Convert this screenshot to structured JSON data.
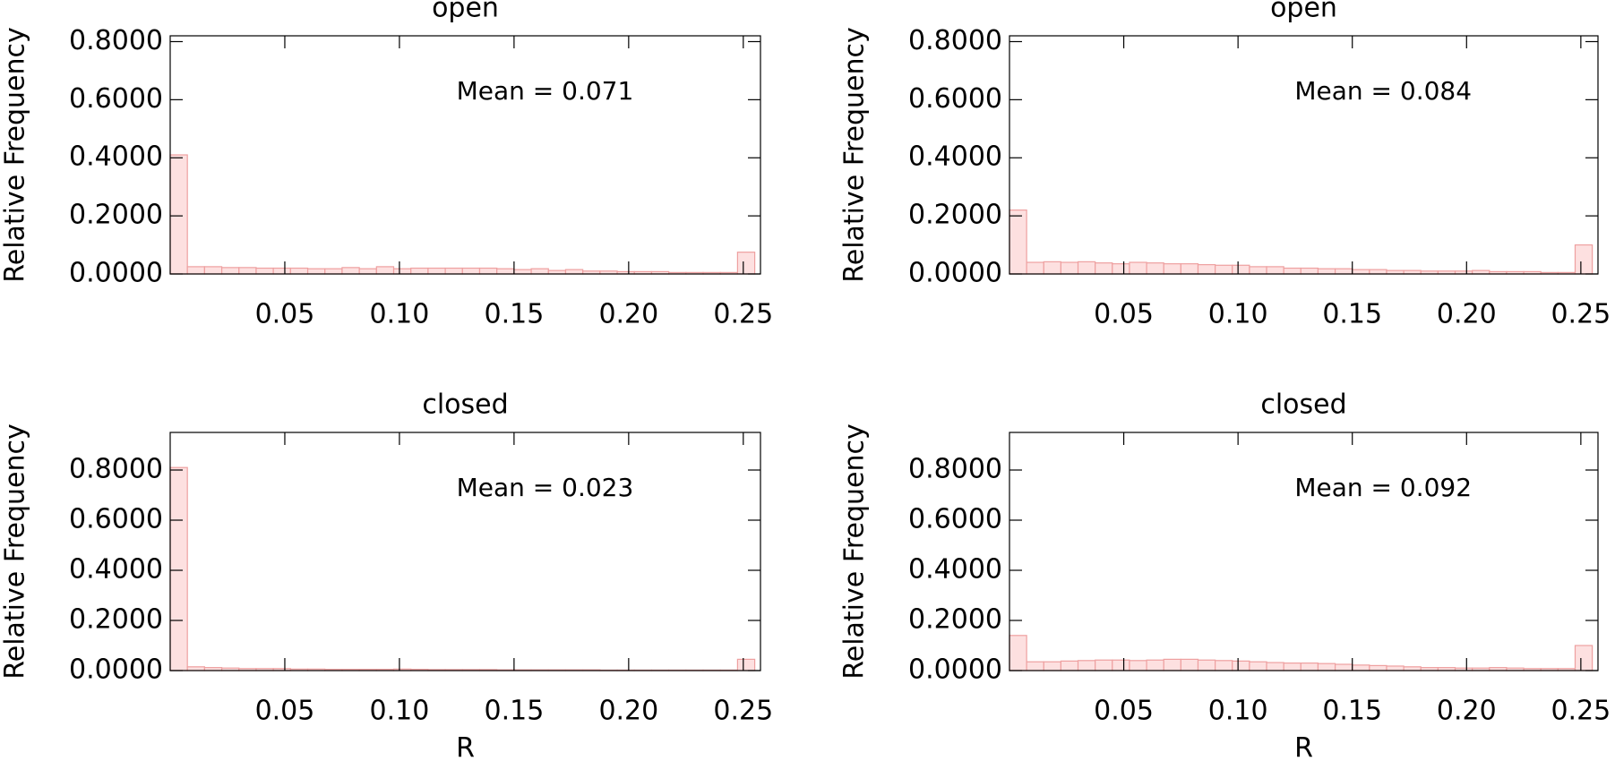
{
  "chart_data": [
    {
      "type": "histogram",
      "title": "open",
      "ylabel": "Relative Frequency",
      "annotation": "Mean = 0.071",
      "color": "#fde0e0",
      "edgecolor": "#eea0a0",
      "annotation_color": "#0000ee",
      "bins": [
        0,
        0.0075,
        0.015,
        0.0225,
        0.03,
        0.0375,
        0.045,
        0.0525,
        0.06,
        0.0675,
        0.075,
        0.0825,
        0.09,
        0.0975,
        0.105,
        0.1125,
        0.12,
        0.1275,
        0.135,
        0.1425,
        0.15,
        0.1575,
        0.165,
        0.1725,
        0.18,
        0.1875,
        0.195,
        0.2025,
        0.21,
        0.2175,
        0.225,
        0.2325,
        0.24,
        0.2475,
        0.255
      ],
      "values": [
        0.41,
        0.025,
        0.025,
        0.022,
        0.022,
        0.02,
        0.02,
        0.02,
        0.018,
        0.018,
        0.022,
        0.018,
        0.025,
        0.018,
        0.02,
        0.02,
        0.02,
        0.02,
        0.02,
        0.018,
        0.015,
        0.018,
        0.012,
        0.015,
        0.01,
        0.01,
        0.008,
        0.008,
        0.008,
        0.005,
        0.005,
        0.005,
        0.005,
        0.075
      ],
      "xlim": [
        0,
        0.2575
      ],
      "ylim": [
        0,
        0.82
      ],
      "xticks": [
        0.05,
        {
          "value": 0.1,
          "label": "0.10"
        },
        0.15,
        {
          "value": 0.2,
          "label": "0.20"
        },
        0.25
      ],
      "yticks": [
        {
          "value": 0,
          "label": "0.0000"
        },
        {
          "value": 0.2,
          "label": "0.2000"
        },
        {
          "value": 0.4,
          "label": "0.4000"
        },
        {
          "value": 0.6,
          "label": "0.6000"
        },
        {
          "value": 0.8,
          "label": "0.8000"
        }
      ]
    },
    {
      "type": "histogram",
      "title": "open",
      "ylabel": "Relative Frequency",
      "annotation": "Mean = 0.084",
      "color": "#fde0e0",
      "edgecolor": "#eea0a0",
      "annotation_color": "#0000ee",
      "bins": [
        0,
        0.0075,
        0.015,
        0.0225,
        0.03,
        0.0375,
        0.045,
        0.0525,
        0.06,
        0.0675,
        0.075,
        0.0825,
        0.09,
        0.0975,
        0.105,
        0.1125,
        0.12,
        0.1275,
        0.135,
        0.1425,
        0.15,
        0.1575,
        0.165,
        0.1725,
        0.18,
        0.1875,
        0.195,
        0.2025,
        0.21,
        0.2175,
        0.225,
        0.2325,
        0.24,
        0.2475,
        0.255
      ],
      "values": [
        0.22,
        0.04,
        0.042,
        0.04,
        0.042,
        0.038,
        0.035,
        0.04,
        0.038,
        0.035,
        0.035,
        0.032,
        0.03,
        0.03,
        0.025,
        0.025,
        0.02,
        0.02,
        0.018,
        0.018,
        0.015,
        0.015,
        0.012,
        0.012,
        0.01,
        0.01,
        0.01,
        0.012,
        0.008,
        0.008,
        0.008,
        0.005,
        0.005,
        0.1
      ],
      "xlim": [
        0,
        0.2575
      ],
      "ylim": [
        0,
        0.82
      ],
      "xticks": [
        0.05,
        {
          "value": 0.1,
          "label": "0.10"
        },
        0.15,
        {
          "value": 0.2,
          "label": "0.20"
        },
        0.25
      ],
      "yticks": [
        {
          "value": 0,
          "label": "0.0000"
        },
        {
          "value": 0.2,
          "label": "0.2000"
        },
        {
          "value": 0.4,
          "label": "0.4000"
        },
        {
          "value": 0.6,
          "label": "0.6000"
        },
        {
          "value": 0.8,
          "label": "0.8000"
        }
      ]
    },
    {
      "type": "histogram",
      "title": "closed",
      "ylabel": "Relative Frequency",
      "xlabel": "R",
      "annotation": "Mean = 0.023",
      "color": "#fde0e0",
      "edgecolor": "#eea0a0",
      "annotation_color": "#0000ee",
      "bins": [
        0,
        0.0075,
        0.015,
        0.0225,
        0.03,
        0.0375,
        0.045,
        0.0525,
        0.06,
        0.0675,
        0.075,
        0.0825,
        0.09,
        0.0975,
        0.105,
        0.1125,
        0.12,
        0.1275,
        0.135,
        0.1425,
        0.15,
        0.1575,
        0.165,
        0.1725,
        0.18,
        0.1875,
        0.195,
        0.2025,
        0.21,
        0.2175,
        0.225,
        0.2325,
        0.24,
        0.2475,
        0.255
      ],
      "values": [
        0.81,
        0.015,
        0.012,
        0.01,
        0.008,
        0.008,
        0.008,
        0.006,
        0.006,
        0.005,
        0.005,
        0.005,
        0.005,
        0.006,
        0.005,
        0.004,
        0.004,
        0.004,
        0.004,
        0.003,
        0.003,
        0.003,
        0.003,
        0.003,
        0.003,
        0.002,
        0.002,
        0.002,
        0.002,
        0.002,
        0.002,
        0.002,
        0.002,
        0.045
      ],
      "xlim": [
        0,
        0.2575
      ],
      "ylim": [
        0,
        0.95
      ],
      "xticks": [
        0.05,
        {
          "value": 0.1,
          "label": "0.10"
        },
        0.15,
        {
          "value": 0.2,
          "label": "0.20"
        },
        0.25
      ],
      "yticks": [
        {
          "value": 0,
          "label": "0.0000"
        },
        {
          "value": 0.2,
          "label": "0.2000"
        },
        {
          "value": 0.4,
          "label": "0.4000"
        },
        {
          "value": 0.6,
          "label": "0.6000"
        },
        {
          "value": 0.8,
          "label": "0.8000"
        }
      ]
    },
    {
      "type": "histogram",
      "title": "closed",
      "ylabel": "Relative Frequency",
      "xlabel": "R",
      "annotation": "Mean = 0.092",
      "color": "#fde0e0",
      "edgecolor": "#eea0a0",
      "annotation_color": "#0000ee",
      "bins": [
        0,
        0.0075,
        0.015,
        0.0225,
        0.03,
        0.0375,
        0.045,
        0.0525,
        0.06,
        0.0675,
        0.075,
        0.0825,
        0.09,
        0.0975,
        0.105,
        0.1125,
        0.12,
        0.1275,
        0.135,
        0.1425,
        0.15,
        0.1575,
        0.165,
        0.1725,
        0.18,
        0.1875,
        0.195,
        0.2025,
        0.21,
        0.2175,
        0.225,
        0.2325,
        0.24,
        0.2475,
        0.255
      ],
      "values": [
        0.14,
        0.035,
        0.035,
        0.038,
        0.04,
        0.042,
        0.042,
        0.04,
        0.042,
        0.045,
        0.045,
        0.042,
        0.04,
        0.038,
        0.035,
        0.032,
        0.03,
        0.03,
        0.028,
        0.025,
        0.022,
        0.02,
        0.018,
        0.015,
        0.012,
        0.012,
        0.01,
        0.01,
        0.012,
        0.01,
        0.008,
        0.008,
        0.008,
        0.1
      ],
      "xlim": [
        0,
        0.2575
      ],
      "ylim": [
        0,
        0.95
      ],
      "xticks": [
        0.05,
        {
          "value": 0.1,
          "label": "0.10"
        },
        0.15,
        {
          "value": 0.2,
          "label": "0.20"
        },
        0.25
      ],
      "yticks": [
        {
          "value": 0,
          "label": "0.0000"
        },
        {
          "value": 0.2,
          "label": "0.2000"
        },
        {
          "value": 0.4,
          "label": "0.4000"
        },
        {
          "value": 0.6,
          "label": "0.6000"
        },
        {
          "value": 0.8,
          "label": "0.8000"
        }
      ]
    }
  ]
}
